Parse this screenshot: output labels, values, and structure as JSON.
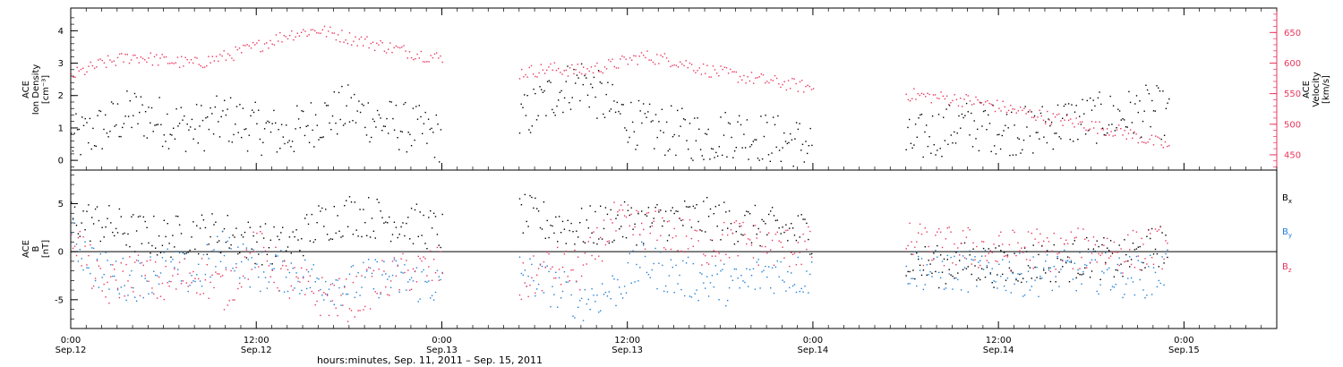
{
  "chart_data": [
    {
      "type": "scatter",
      "panel": "top",
      "ylabel_left": [
        "ACE",
        "Ion Density",
        "[cm⁻³]"
      ],
      "ylabel_right": [
        "ACE",
        "Velocity",
        "[km/s]"
      ],
      "left_ticks": [
        "0",
        "1",
        "2",
        "3",
        "4"
      ],
      "right_ticks": [
        "450",
        "500",
        "550",
        "600",
        "650"
      ],
      "left_ylim": [
        -0.3,
        4.7
      ],
      "right_ylim": [
        425,
        690
      ],
      "x_range_hours": [
        0,
        78
      ],
      "data_segments_hours": [
        [
          0,
          24
        ],
        [
          29,
          48
        ],
        [
          54,
          71
        ]
      ],
      "series": [
        {
          "name": "Ion Density",
          "axis": "left",
          "color": "#000000",
          "points": [
            [
              0,
              0.6
            ],
            [
              2,
              1.0
            ],
            [
              4,
              1.5
            ],
            [
              6,
              1.2
            ],
            [
              8,
              1.0
            ],
            [
              10,
              1.3
            ],
            [
              12,
              1.0
            ],
            [
              14,
              0.8
            ],
            [
              16,
              1.3
            ],
            [
              18,
              1.6
            ],
            [
              20,
              1.2
            ],
            [
              22,
              1.0
            ],
            [
              24,
              0.7
            ],
            [
              29,
              1.2
            ],
            [
              31,
              2.0
            ],
            [
              33,
              2.5
            ],
            [
              35,
              1.6
            ],
            [
              37,
              1.0
            ],
            [
              39,
              0.9
            ],
            [
              41,
              0.7
            ],
            [
              43,
              0.9
            ],
            [
              45,
              0.7
            ],
            [
              48,
              0.5
            ],
            [
              54,
              0.5
            ],
            [
              56,
              0.9
            ],
            [
              58,
              1.1
            ],
            [
              60,
              1.0
            ],
            [
              62,
              0.9
            ],
            [
              64,
              1.2
            ],
            [
              66,
              1.3
            ],
            [
              68,
              1.4
            ],
            [
              70,
              1.6
            ],
            [
              71,
              1.3
            ]
          ]
        },
        {
          "name": "Velocity",
          "axis": "right",
          "color": "#e8365d",
          "points": [
            [
              0,
              580
            ],
            [
              2,
              600
            ],
            [
              4,
              612
            ],
            [
              6,
              605
            ],
            [
              8,
              600
            ],
            [
              10,
              612
            ],
            [
              12,
              628
            ],
            [
              14,
              648
            ],
            [
              16,
              655
            ],
            [
              18,
              642
            ],
            [
              20,
              630
            ],
            [
              22,
              618
            ],
            [
              24,
              608
            ],
            [
              29,
              585
            ],
            [
              31,
              592
            ],
            [
              33,
              588
            ],
            [
              35,
              598
            ],
            [
              37,
              612
            ],
            [
              39,
              605
            ],
            [
              41,
              590
            ],
            [
              43,
              580
            ],
            [
              45,
              572
            ],
            [
              48,
              560
            ],
            [
              54,
              550
            ],
            [
              56,
              545
            ],
            [
              58,
              540
            ],
            [
              60,
              530
            ],
            [
              62,
              518
            ],
            [
              64,
              508
            ],
            [
              66,
              498
            ],
            [
              68,
              488
            ],
            [
              70,
              472
            ],
            [
              71,
              465
            ]
          ]
        }
      ]
    },
    {
      "type": "scatter",
      "panel": "bottom",
      "ylabel_left": [
        "ACE",
        "B",
        "[nT]"
      ],
      "left_ticks": [
        "-5",
        "0",
        "5"
      ],
      "left_ylim": [
        -8,
        8.5
      ],
      "zero_line": true,
      "legend": [
        "Bx",
        "By",
        "Bz"
      ],
      "legend_position": "right",
      "series": [
        {
          "name": "Bx",
          "color": "#000000",
          "points": [
            [
              0,
              3.5
            ],
            [
              2,
              3.0
            ],
            [
              4,
              2.0
            ],
            [
              6,
              1.5
            ],
            [
              8,
              2.0
            ],
            [
              10,
              2.0
            ],
            [
              12,
              1.0
            ],
            [
              14,
              0.5
            ],
            [
              16,
              3.0
            ],
            [
              18,
              4.0
            ],
            [
              20,
              3.5
            ],
            [
              22,
              3.0
            ],
            [
              24,
              2.0
            ],
            [
              29,
              4.0
            ],
            [
              31,
              3.0
            ],
            [
              33,
              2.5
            ],
            [
              35,
              3.0
            ],
            [
              37,
              3.0
            ],
            [
              39,
              3.5
            ],
            [
              41,
              3.5
            ],
            [
              43,
              3.0
            ],
            [
              45,
              2.5
            ],
            [
              48,
              2.0
            ],
            [
              54,
              -1.0
            ],
            [
              56,
              -1.5
            ],
            [
              58,
              -1.0
            ],
            [
              60,
              -1.5
            ],
            [
              62,
              -1.0
            ],
            [
              64,
              -1.0
            ],
            [
              66,
              -0.5
            ],
            [
              68,
              -1.0
            ],
            [
              70,
              0.5
            ],
            [
              71,
              1.0
            ]
          ]
        },
        {
          "name": "By",
          "color": "#1f7fd6",
          "points": [
            [
              0,
              1.5
            ],
            [
              2,
              -2.0
            ],
            [
              4,
              -3.0
            ],
            [
              6,
              -1.5
            ],
            [
              8,
              -2.5
            ],
            [
              10,
              0.5
            ],
            [
              12,
              -2.0
            ],
            [
              14,
              -2.0
            ],
            [
              16,
              -3.0
            ],
            [
              18,
              -3.5
            ],
            [
              20,
              -2.5
            ],
            [
              22,
              -3.0
            ],
            [
              24,
              -3.5
            ],
            [
              29,
              -2.0
            ],
            [
              31,
              -3.5
            ],
            [
              33,
              -5.0
            ],
            [
              35,
              -4.0
            ],
            [
              37,
              -1.0
            ],
            [
              39,
              -2.5
            ],
            [
              41,
              -3.0
            ],
            [
              43,
              -3.5
            ],
            [
              45,
              -2.0
            ],
            [
              48,
              -2.5
            ],
            [
              54,
              -1.5
            ],
            [
              56,
              -2.0
            ],
            [
              58,
              -2.0
            ],
            [
              60,
              -2.0
            ],
            [
              62,
              -2.5
            ],
            [
              64,
              -2.0
            ],
            [
              66,
              -2.0
            ],
            [
              68,
              -2.5
            ],
            [
              70,
              -2.5
            ],
            [
              71,
              -1.5
            ]
          ]
        },
        {
          "name": "Bz",
          "color": "#e8365d",
          "points": [
            [
              0,
              2.5
            ],
            [
              2,
              -4.0
            ],
            [
              4,
              -2.0
            ],
            [
              6,
              -3.5
            ],
            [
              8,
              -2.0
            ],
            [
              10,
              -4.0
            ],
            [
              12,
              0.5
            ],
            [
              14,
              -3.0
            ],
            [
              16,
              -4.5
            ],
            [
              18,
              -5.0
            ],
            [
              20,
              -3.0
            ],
            [
              22,
              -2.0
            ],
            [
              24,
              -1.5
            ],
            [
              29,
              -3.5
            ],
            [
              31,
              -1.5
            ],
            [
              33,
              -2.0
            ],
            [
              35,
              3.0
            ],
            [
              37,
              2.5
            ],
            [
              39,
              2.0
            ],
            [
              41,
              0.5
            ],
            [
              43,
              1.5
            ],
            [
              45,
              0.5
            ],
            [
              48,
              0.5
            ],
            [
              54,
              1.0
            ],
            [
              56,
              0.5
            ],
            [
              58,
              0.5
            ],
            [
              60,
              0.0
            ],
            [
              62,
              0.5
            ],
            [
              64,
              0.0
            ],
            [
              66,
              0.5
            ],
            [
              68,
              0.0
            ],
            [
              70,
              0.5
            ],
            [
              71,
              0.5
            ]
          ]
        }
      ]
    }
  ],
  "x_axis": {
    "ticks": [
      {
        "hour": 0,
        "time": "0:00",
        "date": "Sep.12"
      },
      {
        "hour": 12,
        "time": "12:00",
        "date": "Sep.12"
      },
      {
        "hour": 24,
        "time": "0:00",
        "date": "Sep.13"
      },
      {
        "hour": 36,
        "time": "12:00",
        "date": "Sep.13"
      },
      {
        "hour": 48,
        "time": "0:00",
        "date": "Sep.14"
      },
      {
        "hour": 60,
        "time": "12:00",
        "date": "Sep.14"
      },
      {
        "hour": 72,
        "time": "0:00",
        "date": "Sep.15"
      }
    ],
    "title": "hours:minutes, Sep. 11, 2011 – Sep. 15, 2011"
  }
}
